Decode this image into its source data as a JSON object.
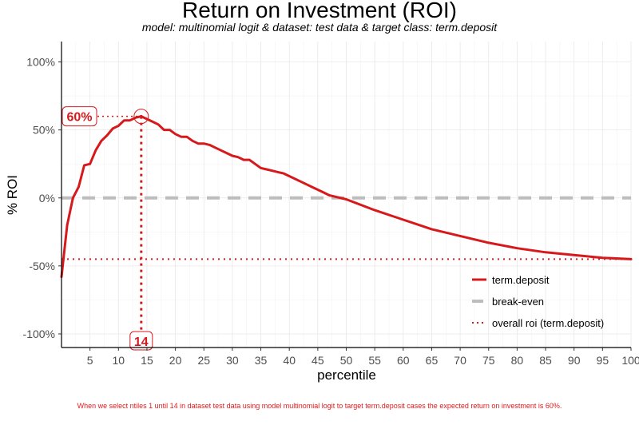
{
  "chart_data": {
    "type": "line",
    "title": "Return on Investment (ROI)",
    "subtitle": "model: multinomial logit  &  dataset: test data  &  target class: term.deposit",
    "xlabel": "percentile",
    "ylabel": "% ROI",
    "xlim": [
      0,
      100
    ],
    "ylim": [
      -110,
      115
    ],
    "x_ticks": [
      5,
      10,
      15,
      20,
      25,
      30,
      35,
      40,
      45,
      50,
      55,
      60,
      65,
      70,
      75,
      80,
      85,
      90,
      95,
      100
    ],
    "x_tick_labels": [
      "5",
      "10",
      "15",
      "20",
      "25",
      "30",
      "35",
      "40",
      "45",
      "50",
      "55",
      "60",
      "65",
      "70",
      "75",
      "80",
      "85",
      "90",
      "95",
      "100"
    ],
    "y_ticks": [
      100,
      50,
      0,
      -50,
      -100
    ],
    "y_tick_labels": [
      "100%",
      "50%",
      "0%",
      "-50%",
      "-100%"
    ],
    "series": [
      {
        "name": "term.deposit",
        "color": "#d7191c",
        "x": [
          0,
          1,
          2,
          3,
          4,
          5,
          6,
          7,
          8,
          9,
          10,
          11,
          12,
          13,
          14,
          15,
          16,
          17,
          18,
          19,
          20,
          21,
          22,
          23,
          24,
          25,
          26,
          27,
          28,
          29,
          30,
          31,
          32,
          33,
          34,
          35,
          36,
          37,
          38,
          39,
          40,
          41,
          42,
          43,
          44,
          45,
          46,
          47,
          48,
          49,
          50,
          55,
          60,
          65,
          70,
          75,
          80,
          85,
          90,
          95,
          100
        ],
        "values": [
          -58,
          -20,
          0,
          8,
          24,
          25,
          35,
          42,
          46,
          51,
          53,
          57,
          57,
          59,
          60,
          58,
          56,
          54,
          50,
          50,
          47,
          45,
          45,
          42,
          40,
          40,
          39,
          37,
          35,
          33,
          31,
          30,
          28,
          28,
          25,
          22,
          21,
          20,
          19,
          18,
          16,
          14,
          12,
          10,
          8,
          6,
          4,
          2,
          1,
          0,
          -1,
          -9,
          -16,
          -23,
          -28,
          -33,
          -37,
          -40,
          -42,
          -44,
          -45
        ]
      }
    ],
    "break_even": {
      "name": "break-even",
      "value": 0,
      "color": "#bdbdbd"
    },
    "overall_roi": {
      "name": "overall roi (term.deposit)",
      "value": -45,
      "color": "#d7191c"
    },
    "highlight": {
      "ntile": 14,
      "roi": 60,
      "ntile_label": "14",
      "roi_label": "60%"
    },
    "legend": [
      "term.deposit",
      "break-even",
      "overall roi (term.deposit)"
    ],
    "legend_position": "bottom-right",
    "grid": true
  },
  "caption": "When we select ntiles 1 until 14 in dataset test data using model multinomial logit to target term.deposit cases the expected return on investment is 60%."
}
